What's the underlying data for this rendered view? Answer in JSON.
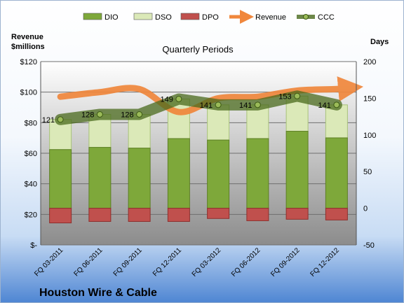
{
  "company": "Houston Wire & Cable",
  "chart_data": {
    "type": "bar",
    "title": "Quarterly Periods",
    "left_axis_label": "Revenue\n$millions",
    "right_axis_label": "Days",
    "categories": [
      "FQ 03-2011",
      "FQ 06-2011",
      "FQ 09-2011",
      "FQ 12-2011",
      "FQ 03-2012",
      "FQ 06-2012",
      "FQ 09-2012",
      "FQ 12-2012"
    ],
    "left_ticks": [
      "$-",
      "$20",
      "$40",
      "$60",
      "$80",
      "$100",
      "$120"
    ],
    "left_ylim": [
      0,
      120
    ],
    "right_ticks": [
      "-50",
      "0",
      "50",
      "100",
      "150",
      "200"
    ],
    "right_ylim": [
      -50,
      200
    ],
    "legend": [
      "DIO",
      "DSO",
      "DPO",
      "Revenue",
      "CCC"
    ],
    "legend_position": "top",
    "series": [
      {
        "name": "DIO",
        "axis": "right",
        "color": "#7ea83a",
        "values": [
          80,
          83,
          82,
          95,
          93,
          95,
          105,
          96
        ]
      },
      {
        "name": "DSO",
        "axis": "right",
        "color": "#dbe9b8",
        "values": [
          41,
          45,
          46,
          54,
          48,
          46,
          48,
          45
        ]
      },
      {
        "name": "DPO",
        "axis": "right",
        "color": "#c0504d",
        "values": [
          -20,
          -18,
          -18,
          -18,
          -14,
          -17,
          -15,
          -16
        ]
      },
      {
        "name": "Revenue",
        "axis": "left",
        "color": "#f0873c",
        "values": [
          97,
          100,
          102,
          87,
          96,
          97,
          101,
          102
        ]
      },
      {
        "name": "CCC",
        "axis": "right",
        "color": "#4a6a1c",
        "values": [
          121,
          128,
          128,
          149,
          141,
          141,
          153,
          141
        ]
      }
    ],
    "ccc_labels": [
      "121",
      "128",
      "128",
      "149",
      "141",
      "141",
      "153",
      "141"
    ]
  }
}
